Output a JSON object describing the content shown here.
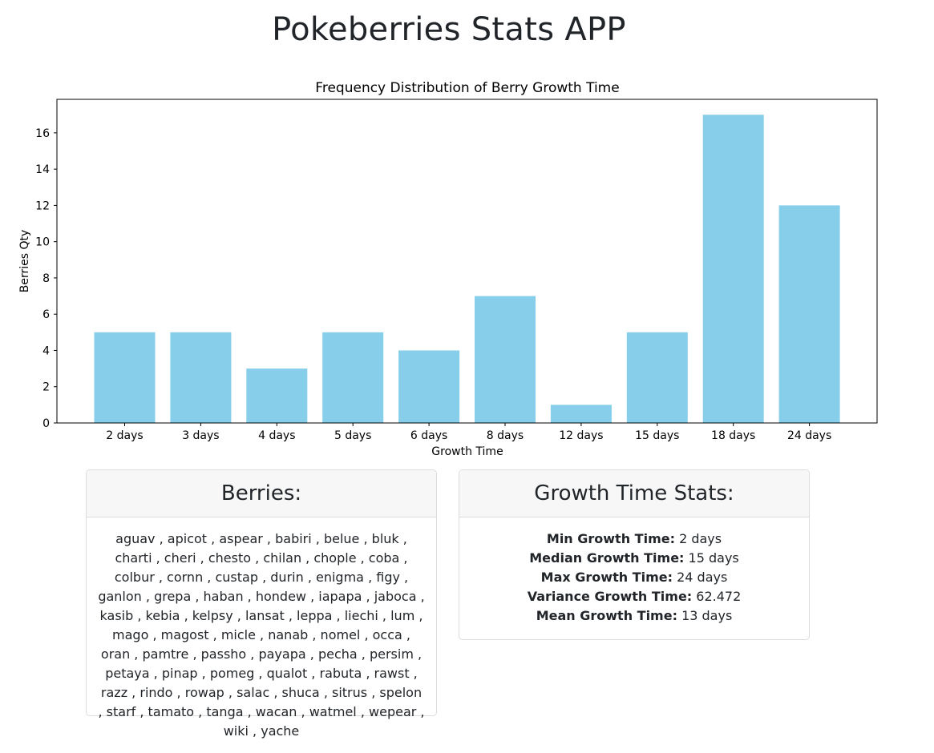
{
  "page": {
    "title": "Pokeberries Stats APP"
  },
  "berries_card": {
    "title": "Berries:",
    "names": [
      "aguav",
      "apicot",
      "aspear",
      "babiri",
      "belue",
      "bluk",
      "charti",
      "cheri",
      "chesto",
      "chilan",
      "chople",
      "coba",
      "colbur",
      "cornn",
      "custap",
      "durin",
      "enigma",
      "figy",
      "ganlon",
      "grepa",
      "haban",
      "hondew",
      "iapapa",
      "jaboca",
      "kasib",
      "kebia",
      "kelpsy",
      "lansat",
      "leppa",
      "liechi",
      "lum",
      "mago",
      "magost",
      "micle",
      "nanab",
      "nomel",
      "occa",
      "oran",
      "pamtre",
      "passho",
      "payapa",
      "pecha",
      "persim",
      "petaya",
      "pinap",
      "pomeg",
      "qualot",
      "rabuta",
      "rawst",
      "razz",
      "rindo",
      "rowap",
      "salac",
      "shuca",
      "sitrus",
      "spelon",
      "starf",
      "tamato",
      "tanga",
      "wacan",
      "watmel",
      "wepear",
      "wiki",
      "yache"
    ]
  },
  "stats_card": {
    "title": "Growth Time Stats:",
    "stats": [
      {
        "label": "Min Growth Time:",
        "value": "2 days"
      },
      {
        "label": "Median Growth Time:",
        "value": "15 days"
      },
      {
        "label": "Max Growth Time:",
        "value": "24 days"
      },
      {
        "label": "Variance Growth Time:",
        "value": "62.472"
      },
      {
        "label": "Mean Growth Time:",
        "value": "13 days"
      }
    ]
  },
  "chart_data": {
    "type": "bar",
    "title": "Frequency Distribution of Berry Growth Time",
    "xlabel": "Growth Time",
    "ylabel": "Berries Qty",
    "categories": [
      "2 days",
      "3 days",
      "4 days",
      "5 days",
      "6 days",
      "8 days",
      "12 days",
      "15 days",
      "18 days",
      "24 days"
    ],
    "values": [
      5,
      5,
      3,
      5,
      4,
      7,
      1,
      5,
      17,
      12
    ],
    "ylim": [
      0,
      17.85
    ],
    "yticks": [
      0,
      2,
      4,
      6,
      8,
      10,
      12,
      14,
      16
    ],
    "bar_color": "#87ceeb",
    "grid": false,
    "legend": "none"
  }
}
